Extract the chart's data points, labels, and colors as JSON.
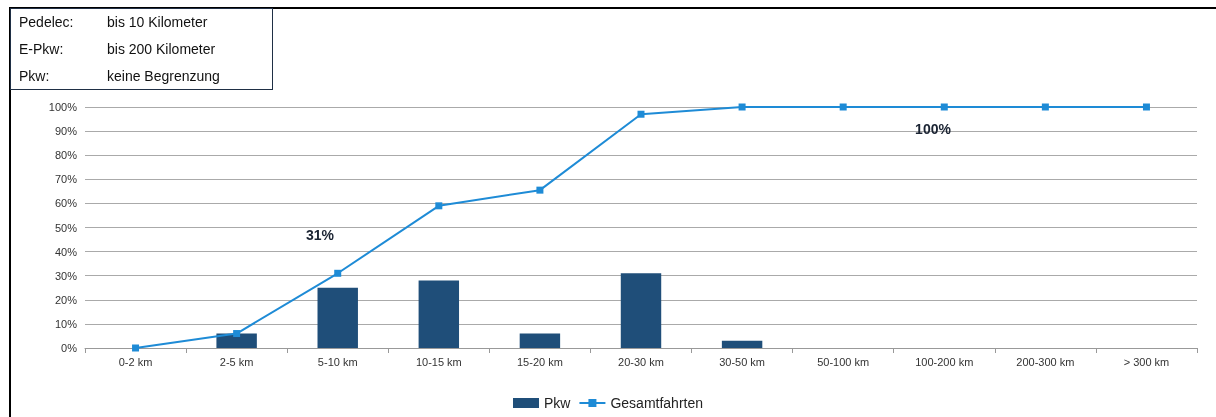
{
  "chart_data": {
    "type": "bar",
    "categories": [
      "0-2 km",
      "2-5 km",
      "5-10 km",
      "10-15 km",
      "15-20 km",
      "20-30 km",
      "30-50 km",
      "50-100 km",
      "100-200 km",
      "200-300 km",
      "> 300 km"
    ],
    "series": [
      {
        "name": "Pkw",
        "color": "#1f4e79",
        "values": [
          0,
          6,
          25,
          28,
          6,
          31,
          3,
          0,
          0,
          0,
          0
        ]
      },
      {
        "name": "Gesamtfahrten",
        "type": "line",
        "color": "#1e8bd6",
        "values": [
          0,
          6,
          31,
          59,
          65.5,
          97,
          100,
          100,
          100,
          100,
          100
        ]
      }
    ],
    "ylim": [
      0,
      100
    ],
    "yticks": [
      {
        "value": 0,
        "label": "0%"
      },
      {
        "value": 10,
        "label": "10%"
      },
      {
        "value": 20,
        "label": "20%"
      },
      {
        "value": 30,
        "label": "30%"
      },
      {
        "value": 40,
        "label": "40%"
      },
      {
        "value": 50,
        "label": "50%"
      },
      {
        "value": 60,
        "label": "60%"
      },
      {
        "value": 70,
        "label": "70%"
      },
      {
        "value": 80,
        "label": "80%"
      },
      {
        "value": 90,
        "label": "90%"
      },
      {
        "value": 100,
        "label": "100%"
      }
    ],
    "annotations": [
      "31%",
      "100%",
      "Pedelec:",
      "bis 10 Kilometer",
      "E-Pkw:",
      "bis 200 Kilometer",
      "Pkw:",
      "keine Begrenzung"
    ],
    "grid": "y",
    "legend": "bottom",
    "marker": "square",
    "line_style": "solid"
  }
}
